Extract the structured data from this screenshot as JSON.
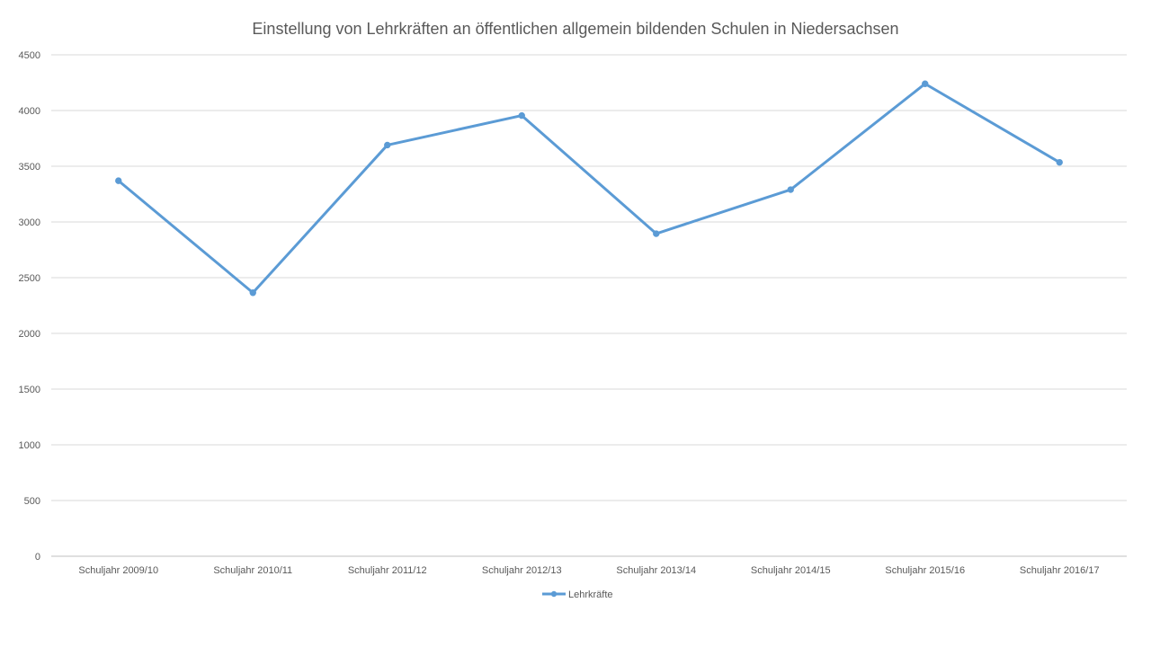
{
  "chart_data": {
    "type": "line",
    "title": "Einstellung von Lehrkräften an öffentlichen allgemein bildenden Schulen in Niedersachsen",
    "xlabel": "",
    "ylabel": "",
    "categories": [
      "Schuljahr 2009/10",
      "Schuljahr 2010/11",
      "Schuljahr 2011/12",
      "Schuljahr 2012/13",
      "Schuljahr 2013/14",
      "Schuljahr 2014/15",
      "Schuljahr 2015/16",
      "Schuljahr 2016/17"
    ],
    "series": [
      {
        "name": "Lehrkräfte",
        "values": [
          3370,
          2365,
          3690,
          3955,
          2895,
          3290,
          4240,
          3535
        ],
        "color": "#5b9bd5"
      }
    ],
    "ylim": [
      0,
      4500
    ],
    "yticks": [
      "0",
      "500",
      "1000",
      "1500",
      "2000",
      "2500",
      "3000",
      "3500",
      "4000",
      "4500"
    ],
    "grid": true,
    "legend": "bottom",
    "colors": {
      "gridline": "#d9d9d9",
      "axis": "#bfbfbf",
      "text": "#595959",
      "title": "#595959"
    }
  }
}
